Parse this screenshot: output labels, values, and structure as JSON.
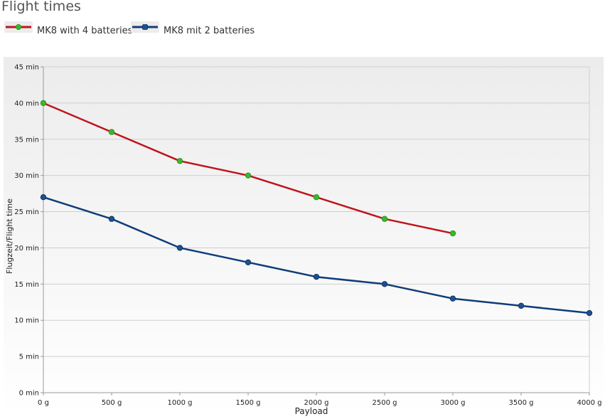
{
  "title": "Flight times",
  "colors": {
    "series_red": "#c0141c",
    "series_blue": "#0f3d7a",
    "marker_green": "#3ab82a",
    "marker_blue": "#1f4f8f",
    "grid": "#cfcfcf"
  },
  "chart_data": {
    "type": "line",
    "title": "Flight times",
    "xlabel": "Payload",
    "ylabel": "Flugzeit/Flight time",
    "x": [
      0,
      500,
      1000,
      1500,
      2000,
      2500,
      3000,
      3500,
      4000
    ],
    "x_tick_labels": [
      "0 g",
      "500 g",
      "1000 g",
      "1500 g",
      "2000 g",
      "2500 g",
      "3000 g",
      "3500 g",
      "4000 g"
    ],
    "y_tick_labels": [
      "0 min",
      "5 min",
      "10 min",
      "15 min",
      "20 min",
      "25 min",
      "30 min",
      "35 min",
      "40 min",
      "45 min"
    ],
    "y_ticks": [
      0,
      5,
      10,
      15,
      20,
      25,
      30,
      35,
      40,
      45
    ],
    "xlim": [
      0,
      4000
    ],
    "ylim": [
      0,
      45
    ],
    "grid": true,
    "legend_position": "top-left",
    "series": [
      {
        "name": "MK8 with 4 batteries",
        "line_color": "#c0141c",
        "marker_color": "#3ab82a",
        "x": [
          0,
          500,
          1000,
          1500,
          2000,
          2500,
          3000
        ],
        "values": [
          40,
          36,
          32,
          30,
          27,
          24,
          22
        ]
      },
      {
        "name": "MK8 mit 2 batteries",
        "line_color": "#0f3d7a",
        "marker_color": "#1f4f8f",
        "x": [
          0,
          500,
          1000,
          1500,
          2000,
          2500,
          3000,
          3500,
          4000
        ],
        "values": [
          27,
          24,
          20,
          18,
          16,
          15,
          13,
          12,
          11
        ]
      }
    ]
  }
}
